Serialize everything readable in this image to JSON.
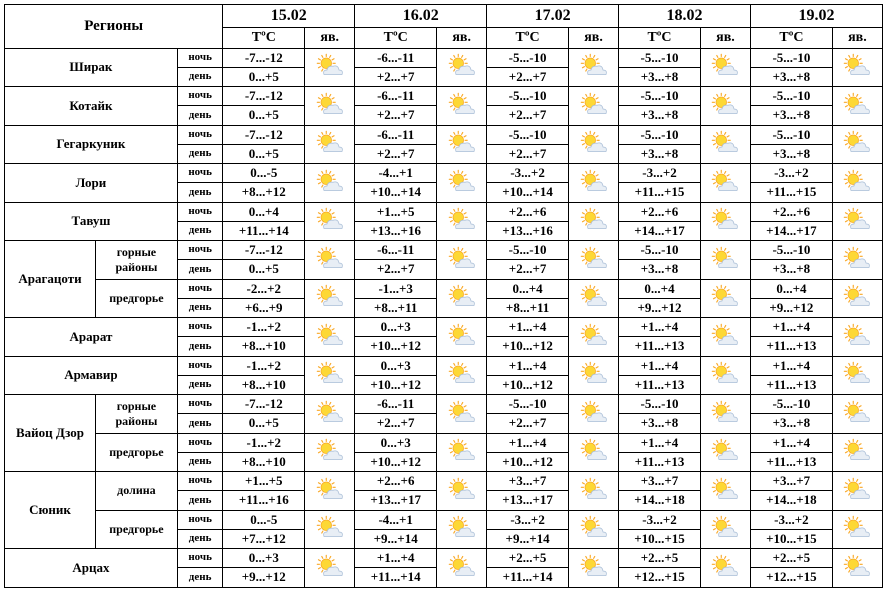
{
  "headers": {
    "regions": "Регионы",
    "dates": [
      "15.02",
      "16.02",
      "17.02",
      "18.02",
      "19.02"
    ],
    "temp_label": "TºС",
    "phen_label": "яв."
  },
  "labels": {
    "night": "ночь",
    "day": "день"
  },
  "icon": "partly_sunny",
  "icon_colors": {
    "sun_fill": "#fdd835",
    "sun_stroke": "#f9a825",
    "cloud_fill": "#e8eef5",
    "cloud_stroke": "#a8bdd6"
  },
  "rows": [
    {
      "region": "Ширак",
      "subregion": null,
      "days": [
        {
          "night": "-7...-12",
          "day": "0...+5"
        },
        {
          "night": "-6...-11",
          "day": "+2...+7"
        },
        {
          "night": "-5...-10",
          "day": "+2...+7"
        },
        {
          "night": "-5...-10",
          "day": "+3...+8"
        },
        {
          "night": "-5...-10",
          "day": "+3...+8"
        }
      ]
    },
    {
      "region": "Котайк",
      "subregion": null,
      "days": [
        {
          "night": "-7...-12",
          "day": "0...+5"
        },
        {
          "night": "-6...-11",
          "day": "+2...+7"
        },
        {
          "night": "-5...-10",
          "day": "+2...+7"
        },
        {
          "night": "-5...-10",
          "day": "+3...+8"
        },
        {
          "night": "-5...-10",
          "day": "+3...+8"
        }
      ]
    },
    {
      "region": "Гегаркуник",
      "subregion": null,
      "days": [
        {
          "night": "-7...-12",
          "day": "0...+5"
        },
        {
          "night": "-6...-11",
          "day": "+2...+7"
        },
        {
          "night": "-5...-10",
          "day": "+2...+7"
        },
        {
          "night": "-5...-10",
          "day": "+3...+8"
        },
        {
          "night": "-5...-10",
          "day": "+3...+8"
        }
      ]
    },
    {
      "region": "Лори",
      "subregion": null,
      "days": [
        {
          "night": "0...-5",
          "day": "+8...+12"
        },
        {
          "night": "-4...+1",
          "day": "+10...+14"
        },
        {
          "night": "-3...+2",
          "day": "+10...+14"
        },
        {
          "night": "-3...+2",
          "day": "+11...+15"
        },
        {
          "night": "-3...+2",
          "day": "+11...+15"
        }
      ]
    },
    {
      "region": "Тавуш",
      "subregion": null,
      "days": [
        {
          "night": "0...+4",
          "day": "+11...+14"
        },
        {
          "night": "+1...+5",
          "day": "+13...+16"
        },
        {
          "night": "+2...+6",
          "day": "+13...+16"
        },
        {
          "night": "+2...+6",
          "day": "+14...+17"
        },
        {
          "night": "+2...+6",
          "day": "+14...+17"
        }
      ]
    },
    {
      "region": "Арагацоти",
      "subregion": "горные районы",
      "days": [
        {
          "night": "-7...-12",
          "day": "0...+5"
        },
        {
          "night": "-6...-11",
          "day": "+2...+7"
        },
        {
          "night": "-5...-10",
          "day": "+2...+7"
        },
        {
          "night": "-5...-10",
          "day": "+3...+8"
        },
        {
          "night": "-5...-10",
          "day": "+3...+8"
        }
      ]
    },
    {
      "region": "Арагацоти",
      "subregion": "предгорье",
      "days": [
        {
          "night": "-2...+2",
          "day": "+6...+9"
        },
        {
          "night": "-1...+3",
          "day": "+8...+11"
        },
        {
          "night": "0...+4",
          "day": "+8...+11"
        },
        {
          "night": "0...+4",
          "day": "+9...+12"
        },
        {
          "night": "0...+4",
          "day": "+9...+12"
        }
      ]
    },
    {
      "region": "Арарат",
      "subregion": null,
      "days": [
        {
          "night": "-1...+2",
          "day": "+8...+10"
        },
        {
          "night": "0...+3",
          "day": "+10...+12"
        },
        {
          "night": "+1...+4",
          "day": "+10...+12"
        },
        {
          "night": "+1...+4",
          "day": "+11...+13"
        },
        {
          "night": "+1...+4",
          "day": "+11...+13"
        }
      ]
    },
    {
      "region": "Армавир",
      "subregion": null,
      "days": [
        {
          "night": "-1...+2",
          "day": "+8...+10"
        },
        {
          "night": "0...+3",
          "day": "+10...+12"
        },
        {
          "night": "+1...+4",
          "day": "+10...+12"
        },
        {
          "night": "+1...+4",
          "day": "+11...+13"
        },
        {
          "night": "+1...+4",
          "day": "+11...+13"
        }
      ]
    },
    {
      "region": "Вайоц Дзор",
      "subregion": "горные районы",
      "days": [
        {
          "night": "-7...-12",
          "day": "0...+5"
        },
        {
          "night": "-6...-11",
          "day": "+2...+7"
        },
        {
          "night": "-5...-10",
          "day": "+2...+7"
        },
        {
          "night": "-5...-10",
          "day": "+3...+8"
        },
        {
          "night": "-5...-10",
          "day": "+3...+8"
        }
      ]
    },
    {
      "region": "Вайоц Дзор",
      "subregion": "предгорье",
      "days": [
        {
          "night": "-1...+2",
          "day": "+8...+10"
        },
        {
          "night": "0...+3",
          "day": "+10...+12"
        },
        {
          "night": "+1...+4",
          "day": "+10...+12"
        },
        {
          "night": "+1...+4",
          "day": "+11...+13"
        },
        {
          "night": "+1...+4",
          "day": "+11...+13"
        }
      ]
    },
    {
      "region": "Сюник",
      "subregion": "долина",
      "days": [
        {
          "night": "+1...+5",
          "day": "+11...+16"
        },
        {
          "night": "+2...+6",
          "day": "+13...+17"
        },
        {
          "night": "+3...+7",
          "day": "+13...+17"
        },
        {
          "night": "+3...+7",
          "day": "+14...+18"
        },
        {
          "night": "+3...+7",
          "day": "+14...+18"
        }
      ]
    },
    {
      "region": "Сюник",
      "subregion": "предгорье",
      "days": [
        {
          "night": "0...-5",
          "day": "+7...+12"
        },
        {
          "night": "-4...+1",
          "day": "+9...+14"
        },
        {
          "night": "-3...+2",
          "day": "+9...+14"
        },
        {
          "night": "-3...+2",
          "day": "+10...+15"
        },
        {
          "night": "-3...+2",
          "day": "+10...+15"
        }
      ]
    },
    {
      "region": "Арцах",
      "subregion": null,
      "days": [
        {
          "night": "0...+3",
          "day": "+9...+12"
        },
        {
          "night": "+1...+4",
          "day": "+11...+14"
        },
        {
          "night": "+2...+5",
          "day": "+11...+14"
        },
        {
          "night": "+2...+5",
          "day": "+12...+15"
        },
        {
          "night": "+2...+5",
          "day": "+12...+15"
        }
      ]
    }
  ]
}
